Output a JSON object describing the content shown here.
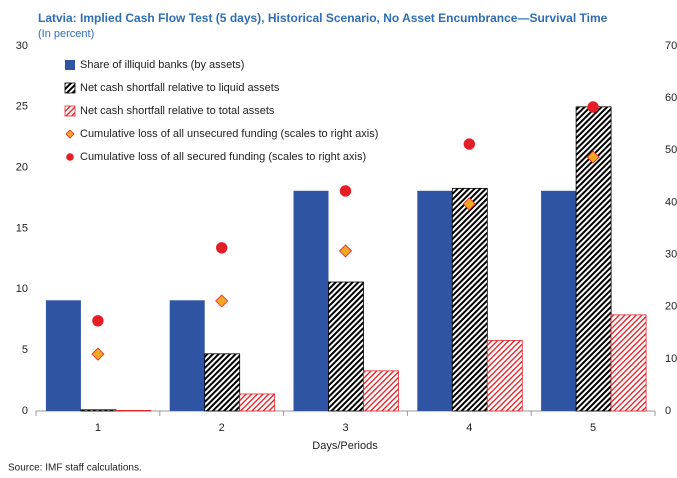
{
  "chart_data": {
    "type": "bar",
    "title": "Latvia: Implied Cash Flow Test (5 days), Historical Scenario, No Asset Encumbrance—Survival Time",
    "subtitle": "(In percent)",
    "x_label": "Days/Periods",
    "source": "Source: IMF staff calculations.",
    "categories": [
      "1",
      "2",
      "3",
      "4",
      "5"
    ],
    "series": [
      {
        "name": "Share of illiquid banks (by assets)",
        "type": "bar",
        "pattern": "solid",
        "color": "#2f54a3",
        "values": [
          9.1,
          9.1,
          18.1,
          18.1,
          18.1
        ]
      },
      {
        "name": "Net cash shortfall relative to liquid assets",
        "type": "bar",
        "pattern": "hatch",
        "color": "#000000",
        "values": [
          0.1,
          4.7,
          10.6,
          18.3,
          25.0
        ]
      },
      {
        "name": "Net cash shortfall relative to total assets",
        "type": "bar",
        "pattern": "hatch",
        "color": "#e3262b",
        "values": [
          0.05,
          1.4,
          3.3,
          5.8,
          7.9
        ]
      },
      {
        "name": "Cumulative loss of all unsecured funding (scales to right axis)",
        "type": "scatter",
        "marker": "diamond",
        "color": "#f5a623",
        "axis": "y2",
        "values": [
          10.9,
          21.1,
          30.7,
          39.7,
          48.7
        ]
      },
      {
        "name": "Cumulative loss of all secured funding (scales to right axis)",
        "type": "scatter",
        "marker": "circle",
        "color": "#e41e26",
        "axis": "y2",
        "values": [
          17.3,
          31.3,
          42.2,
          51.2,
          58.3
        ]
      }
    ],
    "ylim": [
      0,
      30
    ],
    "yticks": [
      0,
      5,
      10,
      15,
      20,
      25,
      30
    ],
    "y2lim": [
      0,
      70
    ],
    "y2ticks": [
      0,
      10,
      20,
      30,
      40,
      50,
      60,
      70
    ],
    "grid": false
  }
}
